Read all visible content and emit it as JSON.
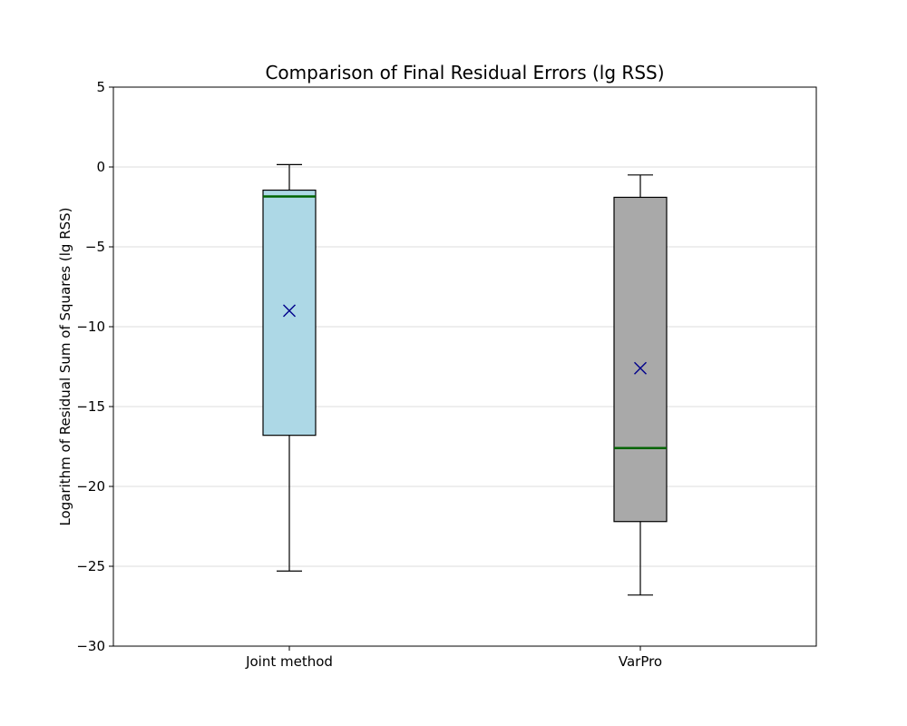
{
  "chart_data": {
    "type": "box",
    "title": "Comparison of Final Residual Errors (lg RSS)",
    "xlabel": "",
    "ylabel": "Logarithm of Residual Sum of Squares (lg RSS)",
    "ylim": [
      -30,
      5
    ],
    "yticks": [
      5,
      0,
      -5,
      -10,
      -15,
      -20,
      -25,
      -30
    ],
    "grid": "horizontal",
    "categories": [
      "Joint method",
      "VarPro"
    ],
    "boxes": [
      {
        "category": "Joint method",
        "whisker_low": -25.3,
        "q1": -16.8,
        "median": -1.85,
        "q3": -1.45,
        "whisker_high": 0.15,
        "mean": -9.0,
        "fill": "#add8e6"
      },
      {
        "category": "VarPro",
        "whisker_low": -26.8,
        "q1": -22.2,
        "median": -17.6,
        "q3": -1.9,
        "whisker_high": -0.5,
        "mean": -12.6,
        "fill": "#a9a9a9"
      }
    ],
    "colors": {
      "median": "#006400",
      "mean_marker": "#00008b",
      "edge": "#000000",
      "grid": "#dddddd"
    }
  }
}
